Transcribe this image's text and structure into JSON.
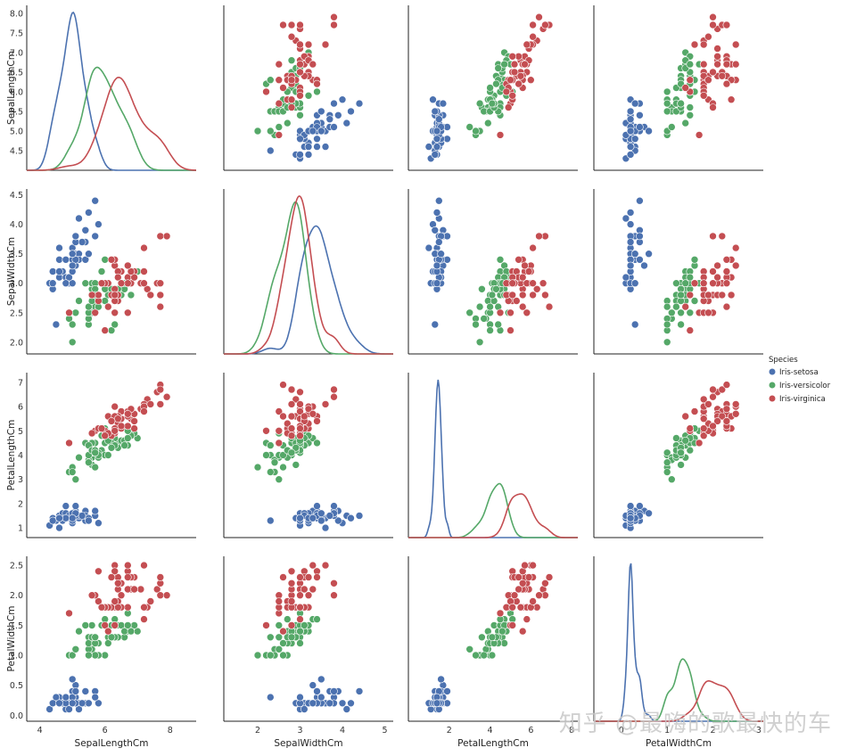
{
  "chart_data": {
    "type": "scatter",
    "variables": [
      "SepalLengthCm",
      "SepalWidthCm",
      "PetalLengthCm",
      "PetalWidthCm"
    ],
    "diagonal": "kde",
    "grid": false,
    "legend": {
      "title": "Species",
      "position": "right"
    },
    "series": [
      {
        "name": "Iris-setosa",
        "color": "#4c72b0",
        "points": [
          [
            5.1,
            3.5,
            1.4,
            0.2
          ],
          [
            4.9,
            3.0,
            1.4,
            0.2
          ],
          [
            4.7,
            3.2,
            1.3,
            0.2
          ],
          [
            4.6,
            3.1,
            1.5,
            0.2
          ],
          [
            5.0,
            3.6,
            1.4,
            0.2
          ],
          [
            5.4,
            3.9,
            1.7,
            0.4
          ],
          [
            4.6,
            3.4,
            1.4,
            0.3
          ],
          [
            5.0,
            3.4,
            1.5,
            0.2
          ],
          [
            4.4,
            2.9,
            1.4,
            0.2
          ],
          [
            4.9,
            3.1,
            1.5,
            0.1
          ],
          [
            5.4,
            3.7,
            1.5,
            0.2
          ],
          [
            4.8,
            3.4,
            1.6,
            0.2
          ],
          [
            4.8,
            3.0,
            1.4,
            0.1
          ],
          [
            4.3,
            3.0,
            1.1,
            0.1
          ],
          [
            5.8,
            4.0,
            1.2,
            0.2
          ],
          [
            5.7,
            4.4,
            1.5,
            0.4
          ],
          [
            5.4,
            3.9,
            1.3,
            0.4
          ],
          [
            5.1,
            3.5,
            1.4,
            0.3
          ],
          [
            5.7,
            3.8,
            1.7,
            0.3
          ],
          [
            5.1,
            3.8,
            1.5,
            0.3
          ],
          [
            5.4,
            3.4,
            1.7,
            0.2
          ],
          [
            5.1,
            3.7,
            1.5,
            0.4
          ],
          [
            4.6,
            3.6,
            1.0,
            0.2
          ],
          [
            5.1,
            3.3,
            1.7,
            0.5
          ],
          [
            4.8,
            3.4,
            1.9,
            0.2
          ],
          [
            5.0,
            3.0,
            1.6,
            0.2
          ],
          [
            5.0,
            3.4,
            1.6,
            0.4
          ],
          [
            5.2,
            3.5,
            1.5,
            0.2
          ],
          [
            5.2,
            3.4,
            1.4,
            0.2
          ],
          [
            4.7,
            3.2,
            1.6,
            0.2
          ],
          [
            4.8,
            3.1,
            1.6,
            0.2
          ],
          [
            5.4,
            3.4,
            1.5,
            0.4
          ],
          [
            5.2,
            4.1,
            1.5,
            0.1
          ],
          [
            5.5,
            4.2,
            1.4,
            0.2
          ],
          [
            4.9,
            3.1,
            1.5,
            0.1
          ],
          [
            5.0,
            3.2,
            1.2,
            0.2
          ],
          [
            5.5,
            3.5,
            1.3,
            0.2
          ],
          [
            4.4,
            3.0,
            1.3,
            0.2
          ],
          [
            5.1,
            3.4,
            1.5,
            0.2
          ],
          [
            5.0,
            3.5,
            1.3,
            0.3
          ],
          [
            4.5,
            2.3,
            1.3,
            0.3
          ],
          [
            4.4,
            3.2,
            1.3,
            0.2
          ],
          [
            5.0,
            3.5,
            1.6,
            0.6
          ],
          [
            5.1,
            3.8,
            1.9,
            0.4
          ],
          [
            4.8,
            3.0,
            1.4,
            0.3
          ],
          [
            5.1,
            3.8,
            1.6,
            0.2
          ],
          [
            4.6,
            3.2,
            1.4,
            0.2
          ],
          [
            5.3,
            3.7,
            1.5,
            0.2
          ],
          [
            5.0,
            3.3,
            1.4,
            0.2
          ]
        ]
      },
      {
        "name": "Iris-versicolor",
        "color": "#55a868",
        "points": [
          [
            7.0,
            3.2,
            4.7,
            1.4
          ],
          [
            6.4,
            3.2,
            4.5,
            1.5
          ],
          [
            6.9,
            3.1,
            4.9,
            1.5
          ],
          [
            5.5,
            2.3,
            4.0,
            1.3
          ],
          [
            6.5,
            2.8,
            4.6,
            1.5
          ],
          [
            5.7,
            2.8,
            4.5,
            1.3
          ],
          [
            6.3,
            3.3,
            4.7,
            1.6
          ],
          [
            4.9,
            2.4,
            3.3,
            1.0
          ],
          [
            6.6,
            2.9,
            4.6,
            1.3
          ],
          [
            5.2,
            2.7,
            3.9,
            1.4
          ],
          [
            5.0,
            2.0,
            3.5,
            1.0
          ],
          [
            5.9,
            3.0,
            4.2,
            1.5
          ],
          [
            6.0,
            2.2,
            4.0,
            1.0
          ],
          [
            6.1,
            2.9,
            4.7,
            1.4
          ],
          [
            5.6,
            2.9,
            3.6,
            1.3
          ],
          [
            6.7,
            3.1,
            4.4,
            1.4
          ],
          [
            5.6,
            3.0,
            4.5,
            1.5
          ],
          [
            5.8,
            2.7,
            4.1,
            1.0
          ],
          [
            6.2,
            2.2,
            4.5,
            1.5
          ],
          [
            5.6,
            2.5,
            3.9,
            1.1
          ],
          [
            5.9,
            3.2,
            4.8,
            1.8
          ],
          [
            6.1,
            2.8,
            4.0,
            1.3
          ],
          [
            6.3,
            2.5,
            4.9,
            1.5
          ],
          [
            6.1,
            2.8,
            4.7,
            1.2
          ],
          [
            6.4,
            2.9,
            4.3,
            1.3
          ],
          [
            6.6,
            3.0,
            4.4,
            1.4
          ],
          [
            6.8,
            2.8,
            4.8,
            1.4
          ],
          [
            6.7,
            3.0,
            5.0,
            1.7
          ],
          [
            6.0,
            2.9,
            4.5,
            1.5
          ],
          [
            5.7,
            2.6,
            3.5,
            1.0
          ],
          [
            5.5,
            2.4,
            3.8,
            1.1
          ],
          [
            5.5,
            2.4,
            3.7,
            1.0
          ],
          [
            5.8,
            2.7,
            3.9,
            1.2
          ],
          [
            6.0,
            2.7,
            5.1,
            1.6
          ],
          [
            5.4,
            3.0,
            4.5,
            1.5
          ],
          [
            6.0,
            3.4,
            4.5,
            1.6
          ],
          [
            6.7,
            3.1,
            4.7,
            1.5
          ],
          [
            6.3,
            2.3,
            4.4,
            1.3
          ],
          [
            5.6,
            3.0,
            4.1,
            1.3
          ],
          [
            5.5,
            2.5,
            4.0,
            1.3
          ],
          [
            5.5,
            2.6,
            4.4,
            1.2
          ],
          [
            6.1,
            3.0,
            4.6,
            1.4
          ],
          [
            5.8,
            2.6,
            4.0,
            1.2
          ],
          [
            5.0,
            2.3,
            3.3,
            1.0
          ],
          [
            5.6,
            2.7,
            4.2,
            1.3
          ],
          [
            5.7,
            3.0,
            4.2,
            1.2
          ],
          [
            5.7,
            2.9,
            4.2,
            1.3
          ],
          [
            6.2,
            2.9,
            4.3,
            1.3
          ],
          [
            5.1,
            2.5,
            3.0,
            1.1
          ],
          [
            5.7,
            2.8,
            4.1,
            1.3
          ]
        ]
      },
      {
        "name": "Iris-virginica",
        "color": "#c44e52",
        "points": [
          [
            6.3,
            3.3,
            6.0,
            2.5
          ],
          [
            5.8,
            2.7,
            5.1,
            1.9
          ],
          [
            7.1,
            3.0,
            5.9,
            2.1
          ],
          [
            6.3,
            2.9,
            5.6,
            1.8
          ],
          [
            6.5,
            3.0,
            5.8,
            2.2
          ],
          [
            7.6,
            3.0,
            6.6,
            2.1
          ],
          [
            4.9,
            2.5,
            4.5,
            1.7
          ],
          [
            7.3,
            2.9,
            6.3,
            1.8
          ],
          [
            6.7,
            2.5,
            5.8,
            1.8
          ],
          [
            7.2,
            3.6,
            6.1,
            2.5
          ],
          [
            6.5,
            3.2,
            5.1,
            2.0
          ],
          [
            6.4,
            2.7,
            5.3,
            1.9
          ],
          [
            6.8,
            3.0,
            5.5,
            2.1
          ],
          [
            5.7,
            2.5,
            5.0,
            2.0
          ],
          [
            5.8,
            2.8,
            5.1,
            2.4
          ],
          [
            6.4,
            3.2,
            5.3,
            2.3
          ],
          [
            6.5,
            3.0,
            5.5,
            1.8
          ],
          [
            7.7,
            3.8,
            6.7,
            2.2
          ],
          [
            7.7,
            2.6,
            6.9,
            2.3
          ],
          [
            6.0,
            2.2,
            5.0,
            1.5
          ],
          [
            6.9,
            3.2,
            5.7,
            2.3
          ],
          [
            5.6,
            2.8,
            4.9,
            2.0
          ],
          [
            7.7,
            2.8,
            6.7,
            2.0
          ],
          [
            6.3,
            2.7,
            4.9,
            1.8
          ],
          [
            6.7,
            3.3,
            5.7,
            2.1
          ],
          [
            7.2,
            3.2,
            6.0,
            1.8
          ],
          [
            6.2,
            2.8,
            4.8,
            1.8
          ],
          [
            6.1,
            3.0,
            4.9,
            1.8
          ],
          [
            6.4,
            2.8,
            5.6,
            2.1
          ],
          [
            7.2,
            3.0,
            5.8,
            1.6
          ],
          [
            7.4,
            2.8,
            6.1,
            1.9
          ],
          [
            7.9,
            3.8,
            6.4,
            2.0
          ],
          [
            6.4,
            2.8,
            5.6,
            2.2
          ],
          [
            6.3,
            2.8,
            5.1,
            1.5
          ],
          [
            6.1,
            2.6,
            5.6,
            1.4
          ],
          [
            7.7,
            3.0,
            6.1,
            2.3
          ],
          [
            6.3,
            3.4,
            5.6,
            2.4
          ],
          [
            6.4,
            3.1,
            5.5,
            1.8
          ],
          [
            6.0,
            3.0,
            4.8,
            1.8
          ],
          [
            6.9,
            3.1,
            5.4,
            2.1
          ],
          [
            6.7,
            3.1,
            5.6,
            2.4
          ],
          [
            6.9,
            3.1,
            5.1,
            2.3
          ],
          [
            6.8,
            3.2,
            5.9,
            2.3
          ],
          [
            6.7,
            3.3,
            5.7,
            2.5
          ],
          [
            6.7,
            3.0,
            5.2,
            2.3
          ],
          [
            6.3,
            2.5,
            5.0,
            1.9
          ],
          [
            6.5,
            3.0,
            5.2,
            2.0
          ],
          [
            6.2,
            3.4,
            5.4,
            2.3
          ],
          [
            5.9,
            3.0,
            5.1,
            1.8
          ]
        ]
      }
    ],
    "axes": {
      "SepalLengthCm": {
        "xlim": [
          3.6,
          8.8
        ],
        "ylim": [
          4.0,
          8.2
        ],
        "xticks": [
          4,
          6,
          8
        ],
        "yticks": [
          4.5,
          5.0,
          5.5,
          6.0,
          6.5,
          7.0,
          7.5,
          8.0
        ],
        "ytick_labels": [
          "4.5",
          "5.0",
          "5.5",
          "6.0",
          "6.5",
          "7.0",
          "7.5",
          "8.0"
        ]
      },
      "SepalWidthCm": {
        "xlim": [
          1.2,
          5.2
        ],
        "ylim": [
          1.8,
          4.6
        ],
        "xticks": [
          2,
          3,
          4,
          5
        ],
        "yticks": [
          2.0,
          2.5,
          3.0,
          3.5,
          4.0,
          4.5
        ],
        "ytick_labels": [
          "2.0",
          "2.5",
          "3.0",
          "3.5",
          "4.0",
          "4.5"
        ]
      },
      "PetalLengthCm": {
        "xlim": [
          0.0,
          8.3
        ],
        "ylim": [
          0.6,
          7.4
        ],
        "xticks": [
          2,
          4,
          6,
          8
        ],
        "yticks": [
          1,
          2,
          3,
          4,
          5,
          6,
          7
        ],
        "ytick_labels": [
          "1",
          "2",
          "3",
          "4",
          "5",
          "6",
          "7"
        ]
      },
      "PetalWidthCm": {
        "xlim": [
          -0.6,
          3.1
        ],
        "ylim": [
          -0.1,
          2.65
        ],
        "xticks": [
          0,
          1,
          2,
          3
        ],
        "yticks": [
          0.0,
          0.5,
          1.0,
          1.5,
          2.0,
          2.5
        ],
        "ytick_labels": [
          "0.0",
          "0.5",
          "1.0",
          "1.5",
          "2.0",
          "2.5"
        ]
      }
    }
  },
  "watermark": "知乎 @最嗨的歌最快的车"
}
